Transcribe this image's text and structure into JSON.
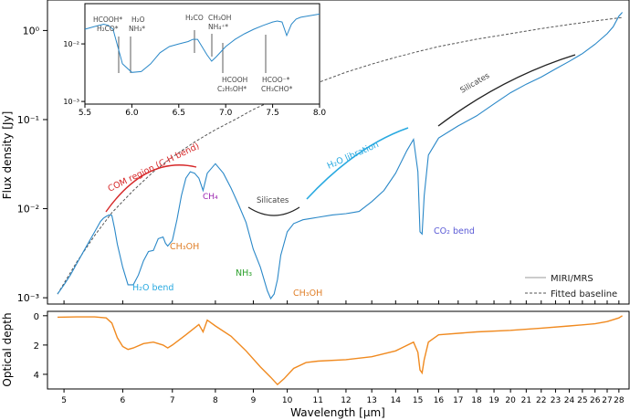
{
  "chart_data": [
    {
      "type": "line",
      "panel": "main",
      "ylabel": "Flux density [Jy]",
      "yscale": "log",
      "xscale": "log",
      "ylim": [
        0.0009,
        2.2
      ],
      "yticks": [
        "10⁰",
        "10⁻¹",
        "10⁻²",
        "10⁻³"
      ],
      "series": [
        {
          "name": "MIRI/MRS",
          "color": "#2a88c8",
          "x": [
            4.9,
            5.0,
            5.1,
            5.2,
            5.3,
            5.4,
            5.5,
            5.6,
            5.65,
            5.7,
            5.75,
            5.8,
            5.85,
            5.9,
            6.0,
            6.1,
            6.2,
            6.3,
            6.4,
            6.5,
            6.6,
            6.7,
            6.8,
            6.85,
            6.9,
            7.0,
            7.1,
            7.2,
            7.3,
            7.4,
            7.5,
            7.6,
            7.7,
            7.8,
            8.0,
            8.2,
            8.4,
            8.6,
            8.8,
            9.0,
            9.2,
            9.4,
            9.5,
            9.6,
            9.7,
            9.8,
            10.0,
            10.2,
            10.5,
            10.8,
            11.0,
            11.5,
            12.0,
            12.5,
            13.0,
            13.5,
            14.0,
            14.5,
            14.8,
            15.0,
            15.1,
            15.2,
            15.3,
            15.5,
            16.0,
            17.0,
            18.0,
            19.0,
            20.0,
            21.0,
            22.0,
            23.0,
            24.0,
            25.0,
            26.0,
            27.0,
            27.5,
            28.0,
            28.3
          ],
          "y": [
            0.0011,
            0.0014,
            0.0018,
            0.0024,
            0.0032,
            0.0042,
            0.0055,
            0.0072,
            0.0078,
            0.0082,
            0.0085,
            0.0084,
            0.006,
            0.004,
            0.0022,
            0.0014,
            0.0014,
            0.0018,
            0.0026,
            0.0033,
            0.0034,
            0.0046,
            0.0048,
            0.0041,
            0.0038,
            0.0044,
            0.0075,
            0.014,
            0.022,
            0.026,
            0.025,
            0.022,
            0.016,
            0.025,
            0.032,
            0.025,
            0.017,
            0.011,
            0.007,
            0.0035,
            0.0022,
            0.0012,
            0.00098,
            0.0011,
            0.0016,
            0.003,
            0.0055,
            0.0068,
            0.0075,
            0.0078,
            0.008,
            0.0085,
            0.0088,
            0.0093,
            0.012,
            0.016,
            0.025,
            0.045,
            0.06,
            0.026,
            0.0055,
            0.0052,
            0.014,
            0.04,
            0.062,
            0.085,
            0.11,
            0.15,
            0.2,
            0.25,
            0.3,
            0.37,
            0.45,
            0.55,
            0.7,
            0.92,
            1.1,
            1.45,
            1.6
          ]
        },
        {
          "name": "Fitted baseline",
          "color": "#555555",
          "dash": true,
          "x": [
            4.9,
            5.2,
            5.5,
            5.8,
            6.2,
            6.6,
            7.0,
            7.5,
            8.0,
            8.5,
            9.0,
            9.5,
            10.0,
            11.0,
            12.0,
            13.0,
            14.0,
            15.0,
            16.0,
            18.0,
            20.0,
            22.0,
            24.0,
            26.0,
            28.3
          ],
          "y": [
            0.0011,
            0.0025,
            0.005,
            0.009,
            0.016,
            0.026,
            0.038,
            0.056,
            0.077,
            0.1,
            0.13,
            0.16,
            0.19,
            0.26,
            0.34,
            0.42,
            0.5,
            0.58,
            0.66,
            0.8,
            0.92,
            1.05,
            1.17,
            1.28,
            1.4
          ]
        }
      ],
      "xticks": [
        "5",
        "6",
        "7",
        "8",
        "9",
        "10",
        "11",
        "12",
        "13",
        "14",
        "15",
        "16",
        "17",
        "18",
        "19",
        "20",
        "21",
        "22",
        "23",
        "24",
        "25",
        "26",
        "27",
        "28"
      ],
      "annotations": [
        {
          "text": "COM region (C-H  bend)",
          "color": "#d62728"
        },
        {
          "text": "CH₄",
          "color": "#9b27b0"
        },
        {
          "text": "Silicates",
          "color": "#444444"
        },
        {
          "text": "H₂O  libration",
          "color": "#28a9e0"
        },
        {
          "text": "Silicates",
          "color": "#444444"
        },
        {
          "text": "H₂O bend",
          "color": "#28a9e0"
        },
        {
          "text": "CH₃OH",
          "color": "#e0802a"
        },
        {
          "text": "NH₃",
          "color": "#2ca02c"
        },
        {
          "text": "CH₃OH",
          "color": "#e0802a"
        },
        {
          "text": "CO₂ bend",
          "color": "#5b5bd6"
        }
      ]
    },
    {
      "type": "line",
      "panel": "inset",
      "yscale": "log",
      "xlim": [
        5.5,
        8.0
      ],
      "xticks": [
        "5.5",
        "6.0",
        "6.5",
        "7.0",
        "7.5",
        "8.0"
      ],
      "yticks": [
        "10⁻²",
        "10⁻³"
      ],
      "series": [
        {
          "name": "MIRI/MRS",
          "color": "#2a88c8",
          "x": [
            5.5,
            5.6,
            5.7,
            5.75,
            5.8,
            5.85,
            5.9,
            6.0,
            6.1,
            6.2,
            6.3,
            6.4,
            6.5,
            6.6,
            6.65,
            6.7,
            6.8,
            6.85,
            6.9,
            7.0,
            7.1,
            7.2,
            7.3,
            7.4,
            7.5,
            7.55,
            7.6,
            7.65,
            7.7,
            7.75,
            7.8,
            7.9,
            8.0
          ],
          "y": [
            0.018,
            0.02,
            0.022,
            0.021,
            0.018,
            0.009,
            0.0045,
            0.0032,
            0.0033,
            0.0045,
            0.007,
            0.009,
            0.01,
            0.011,
            0.012,
            0.012,
            0.0065,
            0.005,
            0.006,
            0.009,
            0.012,
            0.015,
            0.018,
            0.021,
            0.024,
            0.025,
            0.024,
            0.014,
            0.022,
            0.027,
            0.029,
            0.031,
            0.033
          ]
        }
      ],
      "labels": [
        "HCOOH*",
        "H₂CO*",
        "H₂O",
        "NH₃*",
        "H₂CO",
        "CH₃OH",
        "NH₄⁺*",
        "HCOOH",
        "C₂H₅OH*",
        "HCOO⁻*",
        "CH₃CHO*"
      ]
    },
    {
      "type": "line",
      "panel": "optical-depth",
      "ylabel": "Optical depth",
      "xlabel": "Wavelength [μm]",
      "ylim": [
        5.0,
        -0.3
      ],
      "yticks": [
        "0",
        "2",
        "4"
      ],
      "series": [
        {
          "name": "Optical depth",
          "color": "#f08a20",
          "x": [
            4.9,
            5.2,
            5.5,
            5.7,
            5.8,
            5.9,
            6.0,
            6.1,
            6.2,
            6.4,
            6.6,
            6.8,
            6.9,
            7.0,
            7.3,
            7.6,
            7.7,
            7.8,
            8.0,
            8.4,
            8.8,
            9.2,
            9.5,
            9.7,
            9.9,
            10.2,
            10.6,
            11.0,
            12.0,
            13.0,
            14.0,
            14.8,
            15.0,
            15.1,
            15.2,
            15.3,
            15.5,
            16.0,
            18.0,
            20.0,
            22.0,
            24.0,
            26.0,
            27.0,
            28.0,
            28.3
          ],
          "y": [
            0.1,
            0.08,
            0.08,
            0.15,
            0.5,
            1.5,
            2.1,
            2.3,
            2.2,
            1.9,
            1.8,
            2.0,
            2.2,
            2.0,
            1.3,
            0.6,
            1.1,
            0.3,
            0.7,
            1.4,
            2.4,
            3.5,
            4.2,
            4.7,
            4.3,
            3.6,
            3.2,
            3.1,
            3.0,
            2.8,
            2.4,
            1.8,
            2.5,
            3.7,
            3.9,
            3.0,
            1.8,
            1.3,
            1.1,
            1.0,
            0.85,
            0.7,
            0.55,
            0.4,
            0.15,
            0.0
          ]
        }
      ]
    }
  ]
}
